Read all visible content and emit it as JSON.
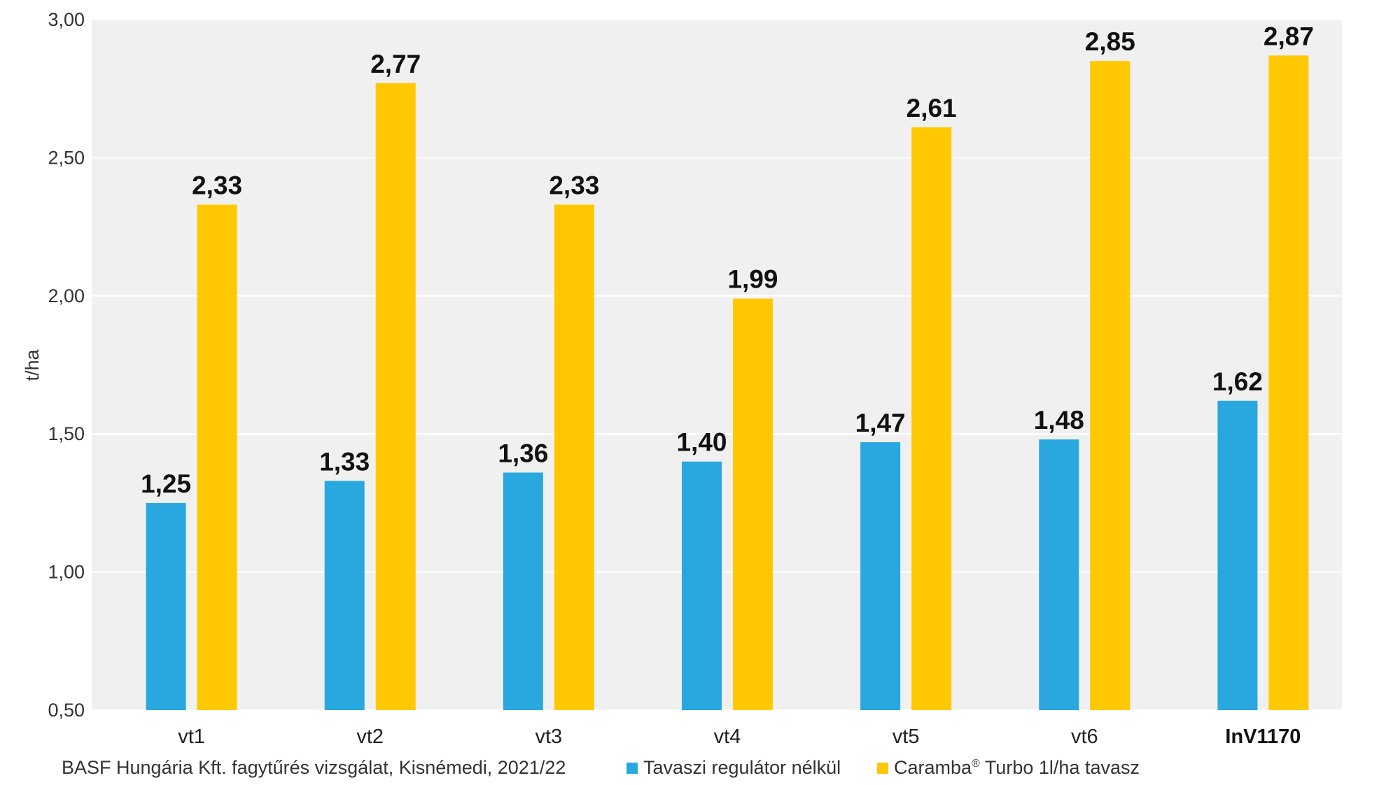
{
  "chart_data": {
    "type": "bar",
    "ylabel": "t/ha",
    "xlabel": "",
    "ylim": [
      0.5,
      3.0
    ],
    "yticks": [
      "0,50",
      "1,00",
      "1,50",
      "2,00",
      "2,50",
      "3,00"
    ],
    "ytick_values": [
      0.5,
      1.0,
      1.5,
      2.0,
      2.5,
      3.0
    ],
    "grid": true,
    "legend_position": "bottom",
    "categories": [
      "vt1",
      "vt2",
      "vt3",
      "vt4",
      "vt5",
      "vt6",
      "InV1170"
    ],
    "highlight_category": "InV1170",
    "series": [
      {
        "name": "Tavaszi regulátor nélkül",
        "color": "#29A8E0",
        "values": [
          1.25,
          1.33,
          1.36,
          1.4,
          1.47,
          1.48,
          1.62
        ],
        "labels": [
          "1,25",
          "1,33",
          "1,36",
          "1,40",
          "1,47",
          "1,48",
          "1,62"
        ]
      },
      {
        "name": "Caramba® Turbo 1l/ha tavasz",
        "color": "#FFC800",
        "values": [
          2.33,
          2.77,
          2.33,
          1.99,
          2.61,
          2.85,
          2.87
        ],
        "labels": [
          "2,33",
          "2,77",
          "2,33",
          "1,99",
          "2,61",
          "2,85",
          "2,87"
        ]
      }
    ]
  },
  "footer": {
    "source": "BASF Hungária Kft. fagytűrés vizsgálat, Kisnémedi, 2021/22",
    "legend": [
      {
        "text": "Tavaszi regulátor nélkül",
        "color": "#29A8E0"
      },
      {
        "text_main": "Caramba",
        "text_sup": "®",
        "text_rest": " Turbo 1l/ha tavasz",
        "color": "#FFC800"
      }
    ]
  }
}
